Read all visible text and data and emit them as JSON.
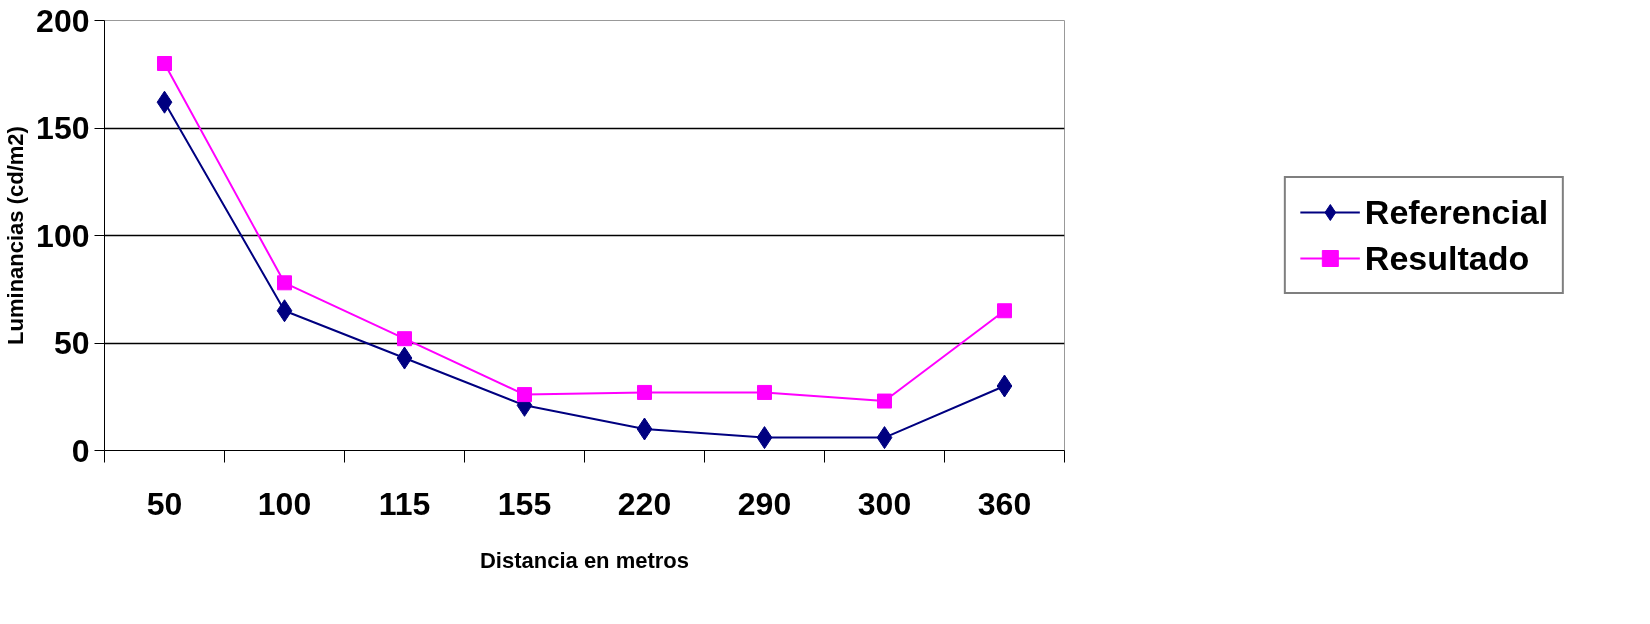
{
  "chart_data": {
    "type": "line",
    "xlabel": "Distancia en metros",
    "ylabel": "Luminancias (cd/m2)",
    "categories": [
      "50",
      "100",
      "115",
      "155",
      "220",
      "290",
      "300",
      "360"
    ],
    "series": [
      {
        "name": "Referencial",
        "color": "#000080",
        "marker": "diamond",
        "values": [
          162,
          65,
          43,
          21,
          10,
          6,
          6,
          30
        ]
      },
      {
        "name": "Resultado",
        "color": "#ff00ff",
        "marker": "square",
        "values": [
          180,
          78,
          52,
          26,
          27,
          27,
          23,
          65
        ]
      }
    ],
    "ylim": [
      0,
      200
    ],
    "yticks": [
      0,
      50,
      100,
      150,
      200
    ],
    "grid": "y",
    "legend": "right",
    "line_style": "solid"
  }
}
